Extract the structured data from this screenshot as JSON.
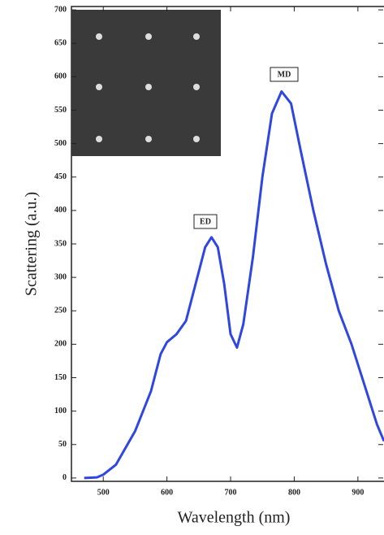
{
  "chart_data": {
    "type": "line",
    "x_label": "Wavelength (nm)",
    "y_label": "Scattering (a.u.)",
    "x": [
      470,
      490,
      500,
      520,
      550,
      575,
      590,
      600,
      615,
      630,
      645,
      660,
      670,
      680,
      690,
      700,
      710,
      720,
      735,
      750,
      765,
      780,
      795,
      810,
      830,
      850,
      870,
      890,
      910,
      930,
      941
    ],
    "series": [
      {
        "name": "Scattering",
        "color": "#2f47e0",
        "values": [
          0,
          1,
          5,
          20,
          70,
          130,
          185,
          203,
          215,
          235,
          290,
          345,
          360,
          345,
          290,
          215,
          195,
          230,
          330,
          450,
          545,
          578,
          560,
          490,
          400,
          320,
          250,
          200,
          140,
          80,
          55
        ]
      }
    ],
    "xlim": [
      450,
      941
    ],
    "ylim": [
      -5,
      705
    ],
    "xticks": [
      500,
      600,
      700,
      800,
      900
    ],
    "yticks": [
      0,
      50,
      100,
      150,
      200,
      250,
      300,
      350,
      400,
      450,
      500,
      550,
      600,
      650,
      700
    ],
    "annotations": [
      "ED",
      "MD"
    ],
    "grid": false
  }
}
